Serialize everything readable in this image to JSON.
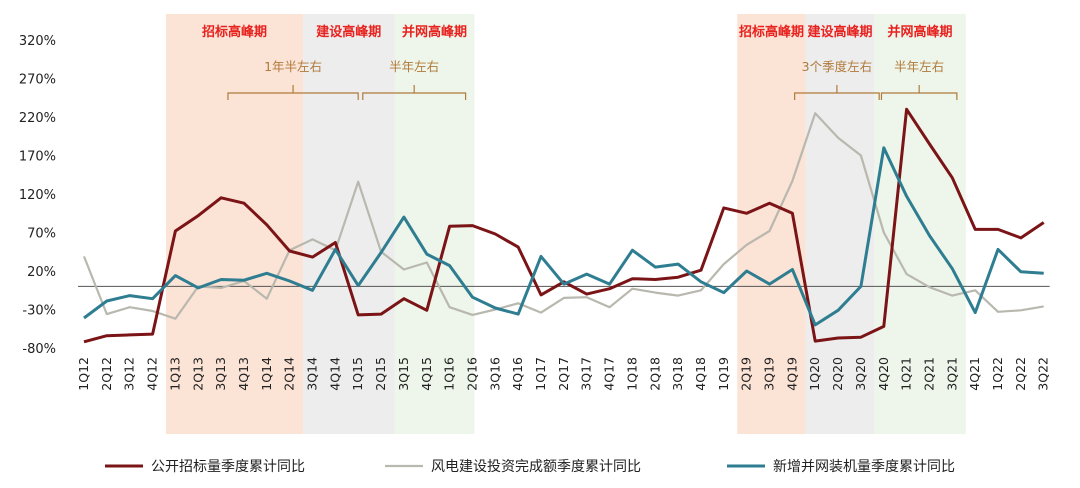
{
  "chart_data": {
    "type": "line",
    "title": "",
    "xlabel": "",
    "ylabel": "",
    "ylim": [
      -80,
      320
    ],
    "yticks": [
      "320%",
      "270%",
      "220%",
      "170%",
      "120%",
      "70%",
      "20%",
      "-30%",
      "-80%"
    ],
    "ytick_values": [
      320,
      270,
      220,
      170,
      120,
      70,
      20,
      -30,
      -80
    ],
    "categories": [
      "1Q12",
      "2Q12",
      "3Q12",
      "4Q12",
      "1Q13",
      "2Q13",
      "3Q13",
      "4Q13",
      "1Q14",
      "2Q14",
      "3Q14",
      "4Q14",
      "1Q15",
      "2Q15",
      "3Q15",
      "4Q15",
      "1Q16",
      "2Q16",
      "3Q16",
      "4Q16",
      "1Q17",
      "2Q17",
      "3Q17",
      "4Q17",
      "1Q18",
      "2Q18",
      "3Q18",
      "4Q18",
      "1Q19",
      "2Q19",
      "3Q19",
      "4Q19",
      "1Q20",
      "2Q20",
      "3Q20",
      "4Q20",
      "1Q21",
      "2Q21",
      "3Q21",
      "4Q21",
      "1Q22",
      "2Q22",
      "3Q22"
    ],
    "series": [
      {
        "name": "公开招标量季度累计同比",
        "color": "#7b1416",
        "values": [
          -72,
          -64,
          -63,
          -62,
          72,
          92,
          115,
          108,
          80,
          46,
          38,
          57,
          -37,
          -36,
          -16,
          -31,
          78,
          79,
          68,
          51,
          -11,
          6,
          -10,
          -3,
          10,
          9,
          12,
          21,
          102,
          95,
          108,
          95,
          -71,
          -67,
          -66,
          -52,
          230,
          185,
          141,
          74,
          74,
          63,
          83
        ]
      },
      {
        "name": "风电建设投资完成额季度累计同比",
        "color": "#b9b8ae",
        "values": [
          39,
          -36,
          -27,
          -32,
          -42,
          0,
          -2,
          7,
          -16,
          47,
          61,
          47,
          136,
          45,
          22,
          31,
          -27,
          -37,
          -30,
          -22,
          -34,
          -15,
          -14,
          -27,
          -3,
          -8,
          -12,
          -5,
          29,
          54,
          72,
          137,
          225,
          193,
          170,
          70,
          16,
          -1,
          -12,
          -5,
          -33,
          -31,
          -26
        ]
      },
      {
        "name": "新增并网装机量季度累计同比",
        "color": "#2e7d91",
        "values": [
          -41,
          -19,
          -12,
          -16,
          14,
          -2,
          9,
          8,
          17,
          7,
          -5,
          48,
          1,
          44,
          90,
          42,
          27,
          -14,
          -28,
          -36,
          39,
          3,
          16,
          3,
          47,
          25,
          29,
          6,
          -8,
          20,
          3,
          22,
          -50,
          -31,
          0,
          180,
          117,
          66,
          23,
          -34,
          48,
          19,
          17
        ]
      }
    ],
    "phases": [
      {
        "label": "招标高峰期",
        "color": "#fbe3d6"
      },
      {
        "label": "建设高峰期",
        "color": "#ededed"
      },
      {
        "label": "并网高峰期",
        "color": "#eef5ea"
      },
      {
        "label": "招标高峰期",
        "color": "#fbe3d6"
      },
      {
        "label": "建设高峰期",
        "color": "#ededed"
      },
      {
        "label": "并网高峰期",
        "color": "#eef5ea"
      }
    ],
    "durations": [
      {
        "label": "1年半左右"
      },
      {
        "label": "半年左右"
      },
      {
        "label": "3个季度左右"
      },
      {
        "label": "半年左右"
      }
    ],
    "grid": false,
    "legend_position": "bottom"
  }
}
